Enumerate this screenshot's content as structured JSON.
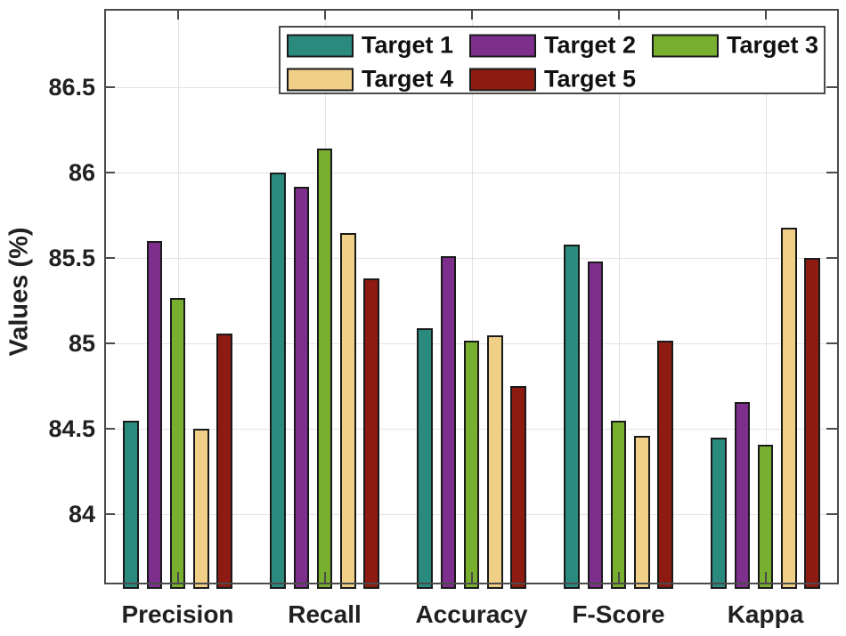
{
  "chart_data": {
    "type": "bar",
    "title": "",
    "xlabel": "",
    "ylabel": "Values (%)",
    "categories": [
      "Precision",
      "Recall",
      "Accuracy",
      "F-Score",
      "Kappa"
    ],
    "series": [
      {
        "name": "Target 1",
        "color": "#2A8A7E",
        "values": [
          84.55,
          86.0,
          85.09,
          85.58,
          84.45
        ]
      },
      {
        "name": "Target 2",
        "color": "#7E2F8E",
        "values": [
          85.6,
          85.92,
          85.51,
          85.48,
          84.66
        ]
      },
      {
        "name": "Target 3",
        "color": "#79AF2E",
        "values": [
          85.27,
          86.14,
          85.02,
          84.55,
          84.41
        ]
      },
      {
        "name": "Target 4",
        "color": "#F0CF87",
        "values": [
          84.5,
          85.65,
          85.05,
          84.46,
          85.68
        ]
      },
      {
        "name": "Target 5",
        "color": "#8E1B12",
        "values": [
          85.06,
          85.38,
          84.75,
          85.02,
          85.5
        ]
      }
    ],
    "yticks": [
      84,
      84.5,
      85,
      85.5,
      86,
      86.5
    ],
    "ytick_labels": [
      "84",
      "84.5",
      "85",
      "85.5",
      "86",
      "86.5"
    ],
    "ylim": [
      83.59,
      86.96
    ],
    "grid": true,
    "legend_position": "top-inside",
    "legend_rows": [
      [
        0,
        1,
        2
      ],
      [
        3,
        4
      ]
    ],
    "styles": {
      "axis_color": "#4a4a4a",
      "grid_color": "#e3e3e3",
      "bar_border_color": "#1a1a1a",
      "text_color": "#212121",
      "background": "#ffffff"
    }
  }
}
